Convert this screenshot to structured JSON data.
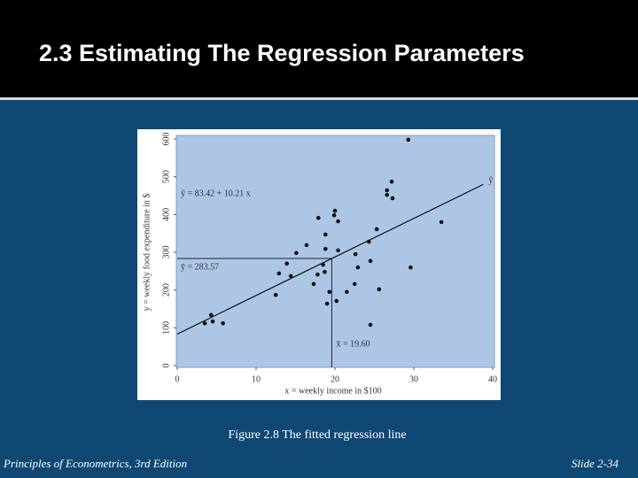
{
  "slide": {
    "title": "2.3 Estimating The Regression Parameters",
    "caption": "Figure 2.8 The fitted regression line",
    "footer_left": "Principles of Econometrics, 3rd Edition",
    "footer_right": "Slide 2-34"
  },
  "chart_data": {
    "type": "scatter",
    "x_label": "x = weekly income in $100",
    "y_label": "y = weekly food expenditure in $",
    "x": [
      29.3,
      27.2,
      26.6,
      26.6,
      27.3,
      33.5,
      17.9,
      20.0,
      19.9,
      20.4,
      25.3,
      18.8,
      16.4,
      24.3,
      15.1,
      18.8,
      20.4,
      13.9,
      22.6,
      24.5,
      18.5,
      22.9,
      29.6,
      12.9,
      14.4,
      17.8,
      18.7,
      17.3,
      22.5,
      25.6,
      19.3,
      21.5,
      12.5,
      19.0,
      20.2,
      24.5,
      4.3,
      4.5,
      3.5,
      5.8
    ],
    "values": [
      598,
      487,
      464,
      452,
      443,
      380,
      391,
      410,
      398,
      382,
      361,
      347,
      319,
      328,
      298,
      309,
      305,
      270,
      295,
      277,
      267,
      260,
      260,
      244,
      237,
      241,
      248,
      216,
      216,
      202,
      195,
      195,
      187,
      164,
      171,
      108,
      134,
      117,
      112,
      112
    ],
    "color": "#111111",
    "xlim": [
      0,
      40
    ],
    "xticks": [
      0,
      10,
      20,
      30,
      40
    ],
    "ylim": [
      0,
      600
    ],
    "yticks": [
      0,
      100,
      200,
      300,
      400,
      500,
      600
    ],
    "fit": {
      "intercept": 83.42,
      "slope": 10.21,
      "label": "ŷ = 83.42 + 10.21 x",
      "end_label": "ŷ"
    },
    "mean_x": 19.6,
    "mean_x_label": "x̄ = 19.60",
    "mean_y": 283.57,
    "mean_y_label": "ȳ = 283.57",
    "grid": false
  }
}
